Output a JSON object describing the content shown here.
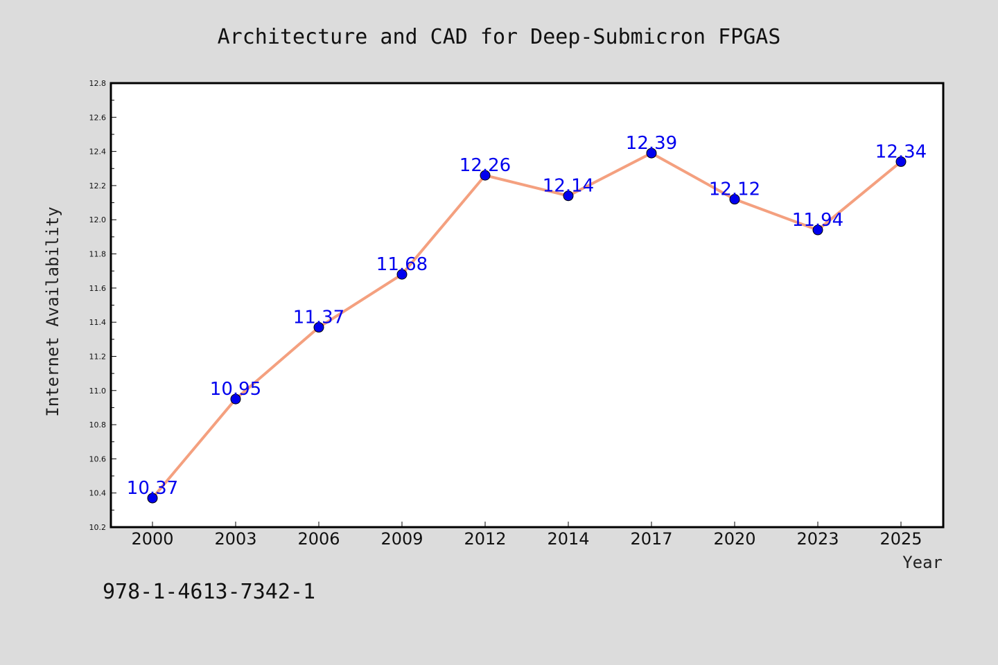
{
  "chart_data": {
    "type": "line",
    "title": "Architecture and CAD for Deep-Submicron FPGAS",
    "xlabel": "Year",
    "ylabel": "Internet Availability",
    "categories": [
      "2000",
      "2003",
      "2006",
      "2009",
      "2012",
      "2014",
      "2017",
      "2020",
      "2023",
      "2025"
    ],
    "values": [
      10.37,
      10.95,
      11.37,
      11.68,
      12.26,
      12.14,
      12.39,
      12.12,
      11.94,
      12.34
    ],
    "data_labels": [
      "10.37",
      "10.95",
      "11.37",
      "11.68",
      "12.26",
      "12.14",
      "12.39",
      "12.12",
      "11.94",
      "12.34"
    ],
    "ylim": [
      10.2,
      12.8
    ],
    "yticks": [
      "10.2",
      "10.4",
      "10.6",
      "10.8",
      "11.0",
      "11.2",
      "11.4",
      "11.6",
      "11.8",
      "12.0",
      "12.2",
      "12.4",
      "12.6",
      "12.8"
    ],
    "grid": false,
    "legend": "none",
    "colors": {
      "line": "#f4a07f",
      "marker": "#0000ee",
      "label": "#0000ee",
      "background": "#dcdcdc",
      "plot_area": "#ffffff"
    }
  },
  "footer": {
    "isbn": "978-1-4613-7342-1"
  }
}
